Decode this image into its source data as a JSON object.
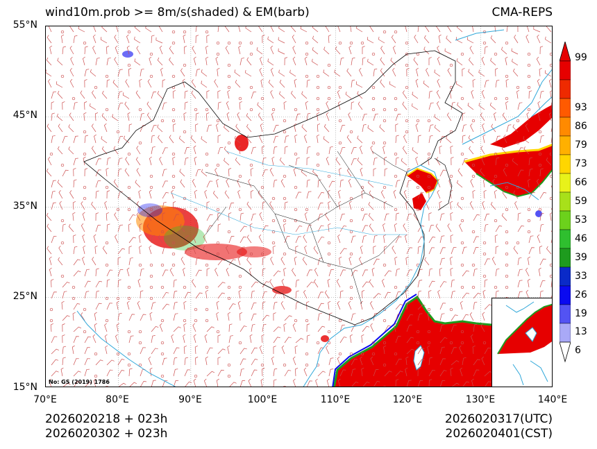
{
  "header": {
    "title_left": "wind10m.prob >= 8m/s(shaded) & EM(barb)",
    "title_right": "CMA-REPS"
  },
  "axes": {
    "lat_labels": [
      "55°N",
      "45°N",
      "35°N",
      "25°N",
      "15°N"
    ],
    "lon_labels": [
      "70°E",
      "80°E",
      "90°E",
      "100°E",
      "110°E",
      "120°E",
      "130°E",
      "140°E"
    ],
    "lat_range": [
      15,
      55
    ],
    "lon_range": [
      70,
      140
    ]
  },
  "map": {
    "approval_note": "No: GS (2019) 1786",
    "colors": {
      "barb": "#cc4d4d",
      "border": "#000000",
      "coast": "#2fa7d9",
      "grid": "#888888"
    }
  },
  "colorbar": {
    "labels": [
      "6",
      "13",
      "19",
      "26",
      "33",
      "39",
      "46",
      "53",
      "59",
      "66",
      "73",
      "79",
      "86",
      "93",
      "99"
    ],
    "colors": [
      "#ffffff",
      "#a9a9f7",
      "#5353f3",
      "#0a0af0",
      "#0a2ac8",
      "#1e9b1e",
      "#2fbf2f",
      "#6cd11c",
      "#a8e01a",
      "#e8f21a",
      "#ffd600",
      "#ffb000",
      "#ff8a00",
      "#ff5a00",
      "#ee2a00",
      "#e60000"
    ],
    "extend_color": "#e60000"
  },
  "footer": {
    "init_utc": "2026020218  +  023h",
    "init_cst": "2026020302  +  023h",
    "valid_utc": "2026020317(UTC)",
    "valid_cst": "2026020401(CST)"
  }
}
